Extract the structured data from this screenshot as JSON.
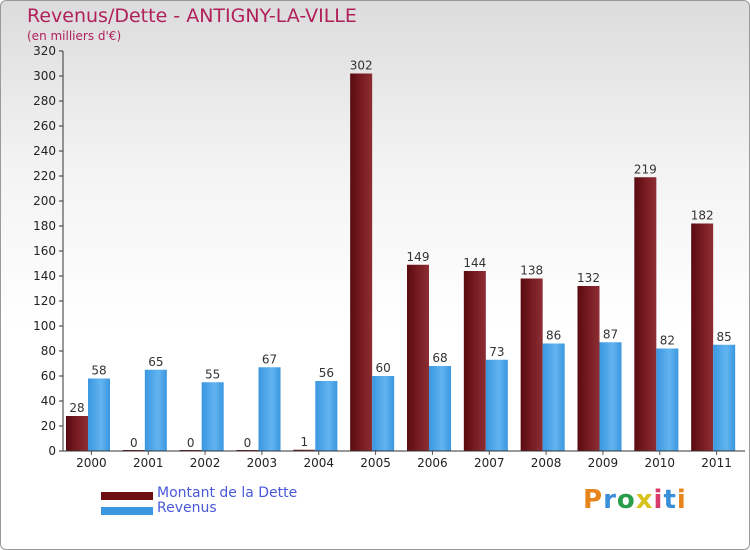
{
  "header": {
    "title": "Revenus/Dette - ANTIGNY-LA-VILLE",
    "subtitle": "(en milliers d'€)"
  },
  "legend": {
    "dette_label": "Montant de la Dette",
    "revenus_label": "Revenus"
  },
  "brand": {
    "logo_text": "Proxiti"
  },
  "colors": {
    "dette": "#7a1e24",
    "dette_dark": "#5a0a10",
    "revenus": "#3a97e0",
    "revenus_light": "#62b4f0",
    "title": "#b0205a",
    "legend_text": "#4a58d8"
  },
  "chart_data": {
    "type": "bar",
    "title": "Revenus/Dette - ANTIGNY-LA-VILLE",
    "ylabel": "(en milliers d'€)",
    "xlabel": "",
    "categories": [
      "2000",
      "2001",
      "2002",
      "2003",
      "2004",
      "2005",
      "2006",
      "2007",
      "2008",
      "2009",
      "2010",
      "2011"
    ],
    "series": [
      {
        "name": "Montant de la Dette",
        "values": [
          28,
          0,
          0,
          0,
          1,
          302,
          149,
          144,
          138,
          132,
          219,
          182
        ]
      },
      {
        "name": "Revenus",
        "values": [
          58,
          65,
          55,
          67,
          56,
          60,
          68,
          73,
          86,
          87,
          82,
          85
        ]
      }
    ],
    "ylim": [
      0,
      320
    ],
    "yticks": [
      0,
      20,
      40,
      60,
      80,
      100,
      120,
      140,
      160,
      180,
      200,
      220,
      240,
      260,
      280,
      300,
      320
    ],
    "grid": false,
    "legend_position": "bottom-left"
  }
}
